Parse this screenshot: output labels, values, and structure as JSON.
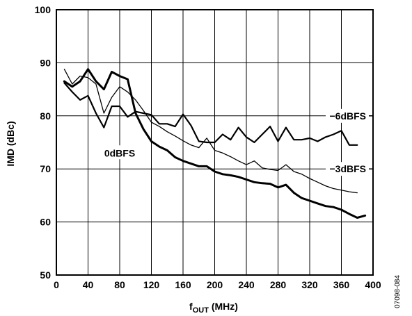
{
  "figure_id": "07098-084",
  "chart_data": {
    "type": "line",
    "title": "",
    "xlabel": "f",
    "xlabel_sub": "OUT",
    "xlabel_unit": " (MHz)",
    "ylabel": "IMD (dBc)",
    "xlim": [
      0,
      400
    ],
    "ylim": [
      50,
      100
    ],
    "x_ticks": [
      0,
      40,
      80,
      120,
      160,
      200,
      240,
      280,
      320,
      360,
      400
    ],
    "y_ticks": [
      50,
      60,
      70,
      80,
      90,
      100
    ],
    "grid": true,
    "series": [
      {
        "name": "0dBFS",
        "stroke_weight": "heavy",
        "points": [
          [
            10,
            86.5
          ],
          [
            20,
            85.5
          ],
          [
            30,
            86.5
          ],
          [
            40,
            88.8
          ],
          [
            50,
            86.5
          ],
          [
            60,
            85
          ],
          [
            70,
            88.3
          ],
          [
            80,
            87.5
          ],
          [
            90,
            86.9
          ],
          [
            100,
            80.5
          ],
          [
            110,
            77.5
          ],
          [
            120,
            75.2
          ],
          [
            130,
            74.2
          ],
          [
            140,
            73.5
          ],
          [
            150,
            72.2
          ],
          [
            160,
            71.5
          ],
          [
            170,
            71
          ],
          [
            180,
            70.5
          ],
          [
            190,
            70.5
          ],
          [
            200,
            69.5
          ],
          [
            210,
            69
          ],
          [
            220,
            68.8
          ],
          [
            230,
            68.5
          ],
          [
            240,
            68
          ],
          [
            250,
            67.5
          ],
          [
            260,
            67.3
          ],
          [
            270,
            67.2
          ],
          [
            280,
            66.5
          ],
          [
            290,
            67
          ],
          [
            300,
            65.5
          ],
          [
            310,
            64.5
          ],
          [
            320,
            64
          ],
          [
            330,
            63.5
          ],
          [
            340,
            63
          ],
          [
            350,
            62.8
          ],
          [
            360,
            62.3
          ],
          [
            370,
            61.5
          ],
          [
            380,
            60.8
          ],
          [
            390,
            61.2
          ]
        ]
      },
      {
        "name": "−6dBFS",
        "stroke_weight": "medium",
        "points": [
          [
            10,
            86.2
          ],
          [
            20,
            84.5
          ],
          [
            30,
            83
          ],
          [
            40,
            83.8
          ],
          [
            50,
            80.5
          ],
          [
            60,
            77.8
          ],
          [
            70,
            81.8
          ],
          [
            80,
            81.8
          ],
          [
            90,
            79.8
          ],
          [
            100,
            80.8
          ],
          [
            110,
            80.5
          ],
          [
            120,
            80.2
          ],
          [
            130,
            78.5
          ],
          [
            140,
            78.5
          ],
          [
            150,
            78
          ],
          [
            160,
            80.3
          ],
          [
            170,
            78.2
          ],
          [
            180,
            75.2
          ],
          [
            190,
            75
          ],
          [
            200,
            75
          ],
          [
            210,
            76.5
          ],
          [
            220,
            75.5
          ],
          [
            230,
            77.8
          ],
          [
            240,
            76
          ],
          [
            250,
            75
          ],
          [
            260,
            76.5
          ],
          [
            270,
            78
          ],
          [
            280,
            75.2
          ],
          [
            290,
            77.8
          ],
          [
            300,
            75.5
          ],
          [
            310,
            75.5
          ],
          [
            320,
            75.8
          ],
          [
            330,
            75.2
          ],
          [
            340,
            76
          ],
          [
            350,
            76.5
          ],
          [
            360,
            77.2
          ],
          [
            370,
            74.5
          ],
          [
            380,
            74.5
          ]
        ]
      },
      {
        "name": "−3dBFS",
        "stroke_weight": "light",
        "points": [
          [
            10,
            88.8
          ],
          [
            20,
            86
          ],
          [
            30,
            87.5
          ],
          [
            40,
            87.2
          ],
          [
            50,
            86
          ],
          [
            60,
            80.5
          ],
          [
            70,
            83.5
          ],
          [
            80,
            85.5
          ],
          [
            90,
            84.5
          ],
          [
            100,
            83
          ],
          [
            110,
            81
          ],
          [
            120,
            78.8
          ],
          [
            130,
            78
          ],
          [
            140,
            77
          ],
          [
            150,
            76.2
          ],
          [
            160,
            75.3
          ],
          [
            170,
            74.5
          ],
          [
            180,
            74
          ],
          [
            190,
            75.8
          ],
          [
            200,
            73.5
          ],
          [
            210,
            73
          ],
          [
            220,
            72.3
          ],
          [
            230,
            71.5
          ],
          [
            240,
            70.8
          ],
          [
            250,
            71.5
          ],
          [
            260,
            70.2
          ],
          [
            270,
            69.9
          ],
          [
            280,
            69.7
          ],
          [
            290,
            70.8
          ],
          [
            300,
            69.5
          ],
          [
            310,
            69
          ],
          [
            320,
            68.2
          ],
          [
            330,
            67.5
          ],
          [
            340,
            66.8
          ],
          [
            350,
            66.3
          ],
          [
            360,
            66
          ],
          [
            370,
            65.7
          ],
          [
            380,
            65.5
          ]
        ]
      }
    ],
    "annotations": [
      {
        "text": "−6dBFS",
        "series": "−6dBFS",
        "at": [
          400,
          80
        ]
      },
      {
        "text": "−3dBFS",
        "series": "−3dBFS",
        "at": [
          400,
          70
        ]
      },
      {
        "text": "0dBFS",
        "series": "0dBFS",
        "at": [
          80,
          73
        ]
      }
    ]
  }
}
